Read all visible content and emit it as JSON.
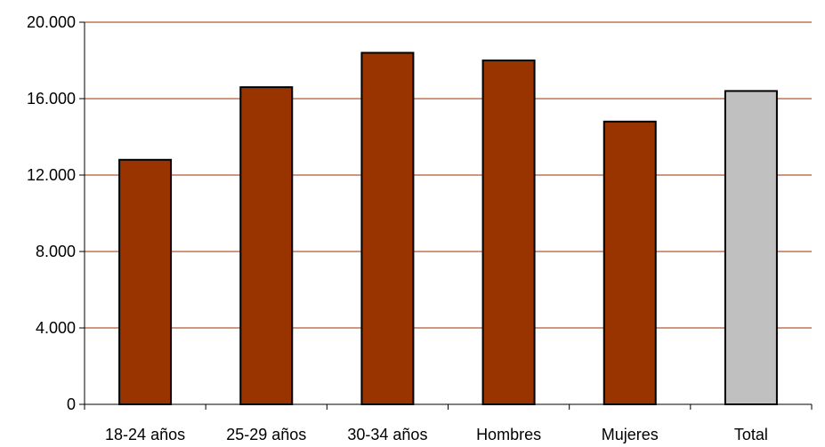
{
  "chart_data": {
    "type": "bar",
    "title": "",
    "xlabel": "",
    "ylabel": "",
    "categories": [
      "18-24 años",
      "25-29 años",
      "30-34 años",
      "Hombres",
      "Mujeres",
      "Total"
    ],
    "values": [
      12800,
      16600,
      18400,
      18000,
      14800,
      16400
    ],
    "ylim": [
      0,
      20000
    ],
    "yticks": [
      0,
      4000,
      8000,
      12000,
      16000,
      20000
    ],
    "ytick_labels": [
      "0",
      "4.000",
      "8.000",
      "12.000",
      "16.000",
      "20.000"
    ],
    "grid": true,
    "legend": "none",
    "colors": {
      "bar": "#993300",
      "highlight_bar": "#C0C0C0",
      "grid": "#993300",
      "axis": "#000000",
      "bar_stroke": "#000000"
    },
    "highlight_category": "Total"
  }
}
